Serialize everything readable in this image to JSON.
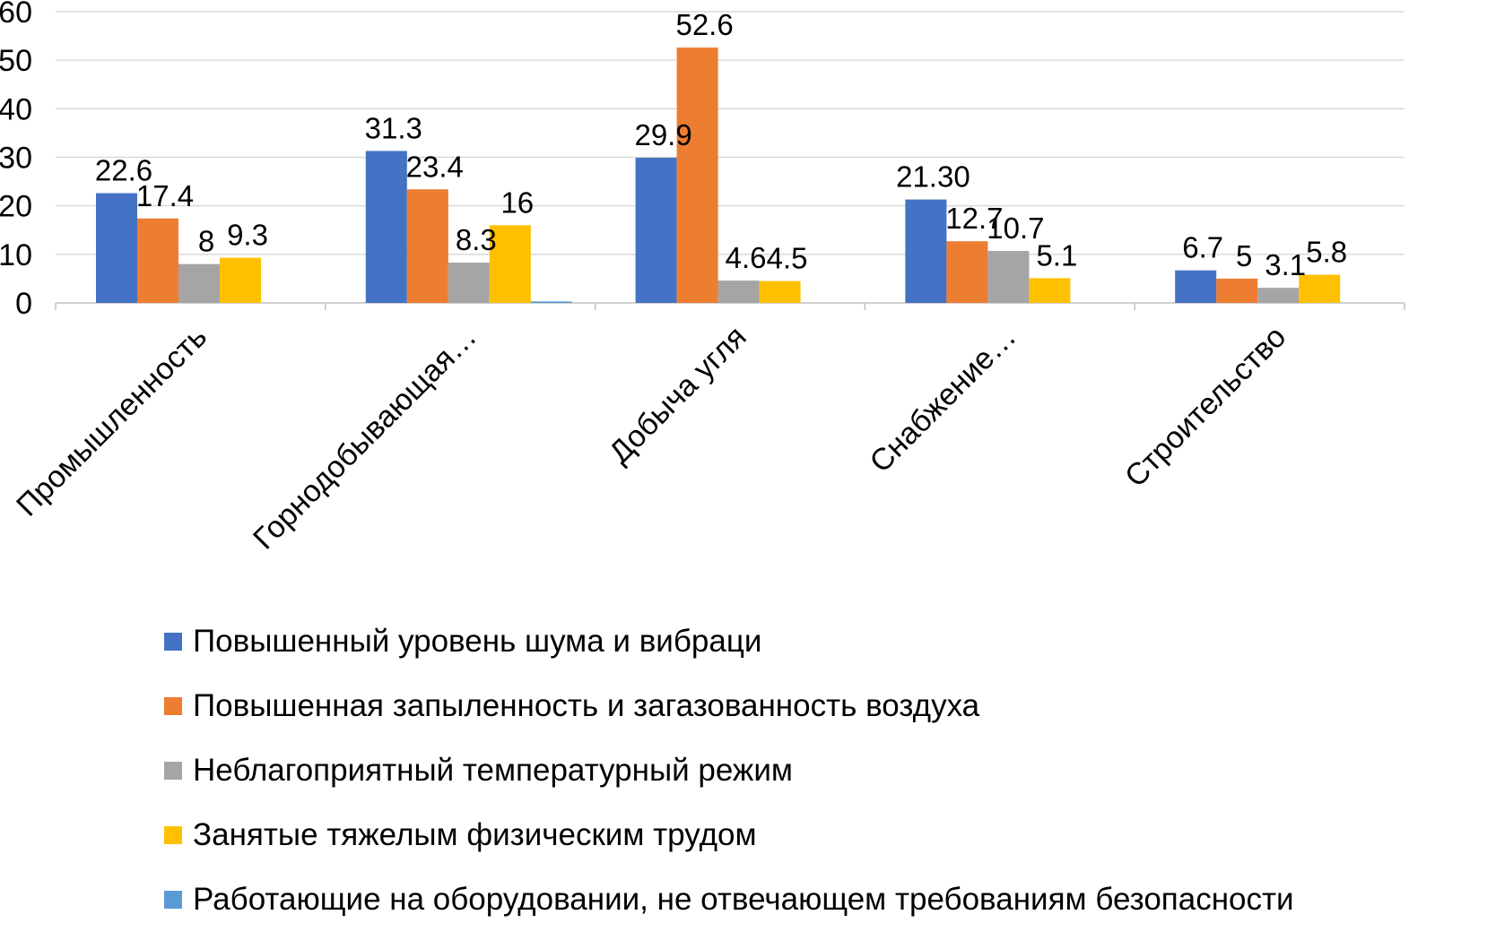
{
  "chart_data": {
    "type": "bar",
    "title": "",
    "xlabel": "",
    "ylabel": "",
    "ylim": [
      0,
      60
    ],
    "yticks": [
      0,
      10,
      20,
      30,
      40,
      50,
      60
    ],
    "grid": true,
    "legend_position": "bottom",
    "categories": [
      "Промышленность",
      "Горнодобывающая…",
      "Добыча угля",
      "Снабжение…",
      "Строительство"
    ],
    "series": [
      {
        "name": "Повышенный уровень шума и вибраци",
        "color": "#4472C4",
        "values": [
          22.6,
          31.3,
          29.9,
          21.3,
          6.7
        ],
        "labels": [
          "22.6",
          "31.3",
          "29.9",
          "21.30",
          "6.7"
        ]
      },
      {
        "name": "Повышенная запыленность и загазованность воздуха",
        "color": "#ED7D31",
        "values": [
          17.4,
          23.4,
          52.6,
          12.7,
          5
        ],
        "labels": [
          "17.4",
          "23.4",
          "52.6",
          "12.7",
          "5"
        ]
      },
      {
        "name": "Неблагоприятный температурный режим",
        "color": "#A5A5A5",
        "values": [
          8,
          8.3,
          4.6,
          10.7,
          3.1
        ],
        "labels": [
          "8",
          "8.3",
          "4.6",
          "10.7",
          "3.1"
        ]
      },
      {
        "name": "Занятые тяжелым физическим трудом",
        "color": "#FFC000",
        "values": [
          9.3,
          16,
          4.5,
          5.1,
          5.8
        ],
        "labels": [
          "9.3",
          "16",
          "4.5",
          "5.1",
          "5.8"
        ]
      },
      {
        "name": "Работающие на оборудовании, не отвечающем требованиям безопасности",
        "color": "#5B9BD5",
        "values": [
          0,
          0.3,
          0,
          0,
          0
        ],
        "labels": [
          "",
          "",
          "",
          "",
          ""
        ]
      }
    ]
  }
}
